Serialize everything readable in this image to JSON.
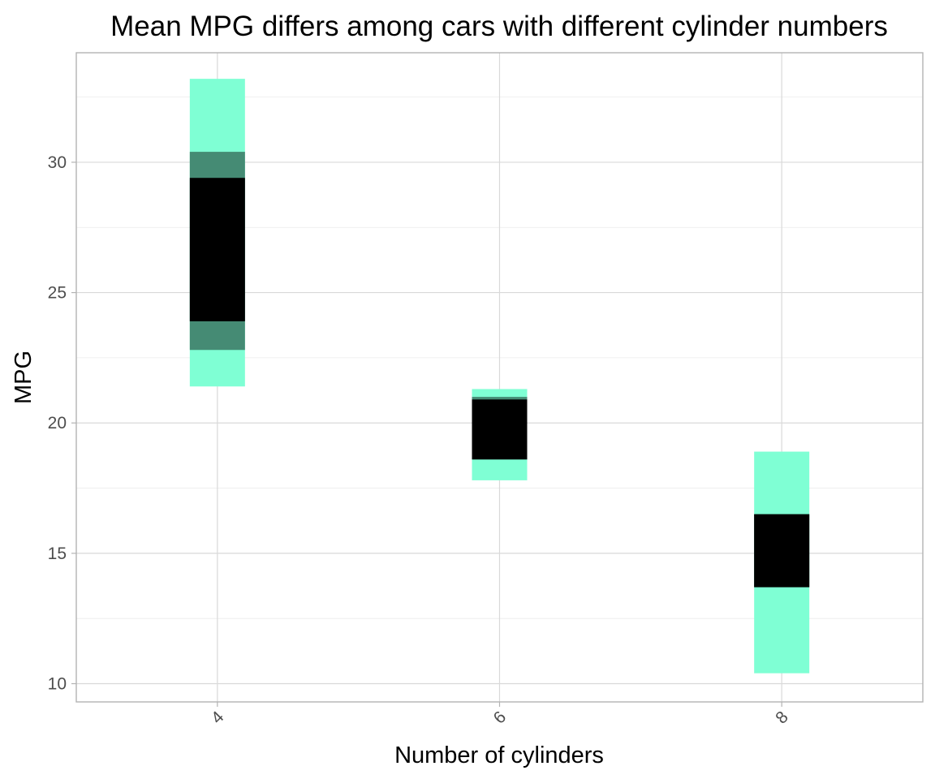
{
  "chart_data": {
    "type": "bar",
    "title": "Mean MPG differs among cars with different cylinder numbers",
    "xlabel": "Number of cylinders",
    "ylabel": "MPG",
    "x_ticks": [
      "4",
      "6",
      "8"
    ],
    "y_ticks": [
      10,
      15,
      20,
      25,
      30
    ],
    "xlim": [
      3,
      9
    ],
    "ylim": [
      9.3,
      34.2
    ],
    "grid": true,
    "legend": "none",
    "colors": {
      "outer": "#7fffd4",
      "middle": "#458b74",
      "inner": "#000000"
    },
    "categories": [
      "4",
      "6",
      "8"
    ],
    "series": [
      {
        "x": 4,
        "intervals": [
          {
            "level": "outer",
            "low": 21.4,
            "high": 33.2
          },
          {
            "level": "middle",
            "low": 22.8,
            "high": 30.4
          },
          {
            "level": "inner",
            "low": 23.9,
            "high": 29.4
          }
        ]
      },
      {
        "x": 6,
        "intervals": [
          {
            "level": "outer",
            "low": 17.8,
            "high": 21.3
          },
          {
            "level": "middle",
            "low": 18.6,
            "high": 21.0
          },
          {
            "level": "inner",
            "low": 18.6,
            "high": 20.9
          }
        ]
      },
      {
        "x": 8,
        "intervals": [
          {
            "level": "outer",
            "low": 10.4,
            "high": 18.9
          },
          {
            "level": "middle",
            "low": 13.7,
            "high": 16.5
          },
          {
            "level": "inner",
            "low": 13.7,
            "high": 16.5
          }
        ]
      }
    ]
  }
}
